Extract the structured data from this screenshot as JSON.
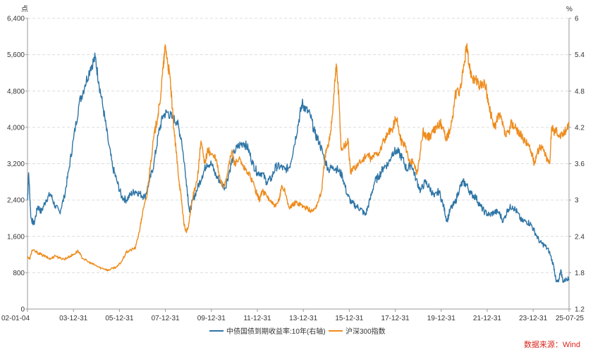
{
  "chart_data": {
    "type": "line",
    "title": "",
    "left_unit": "点",
    "right_unit": "%",
    "left_axis": {
      "min": 0,
      "max": 6400,
      "ticks": [
        "0",
        "800",
        "1,600",
        "2,400",
        "3,200",
        "4,000",
        "4,800",
        "5,600",
        "6,400"
      ]
    },
    "right_axis": {
      "min": 1.2,
      "max": 6.0,
      "ticks": [
        "1.2",
        "1.8",
        "2.4",
        "3",
        "3.6",
        "4.2",
        "4.8",
        "5.4",
        "6"
      ]
    },
    "x_range": [
      2002.0,
      2025.56
    ],
    "x_ticks": [
      {
        "label": "02-01-04",
        "t": 2002.0
      },
      {
        "label": "03-12-31",
        "t": 2004.0
      },
      {
        "label": "05-12-31",
        "t": 2006.0
      },
      {
        "label": "07-12-31",
        "t": 2008.0
      },
      {
        "label": "09-12-31",
        "t": 2010.0
      },
      {
        "label": "11-12-31",
        "t": 2012.0
      },
      {
        "label": "13-12-31",
        "t": 2014.0
      },
      {
        "label": "15-12-31",
        "t": 2016.0
      },
      {
        "label": "17-12-31",
        "t": 2018.0
      },
      {
        "label": "19-12-31",
        "t": 2020.0
      },
      {
        "label": "21-12-31",
        "t": 2022.0
      },
      {
        "label": "23-12-31",
        "t": 2024.0
      },
      {
        "label": "25-07-25",
        "t": 2025.56
      }
    ],
    "grid": true,
    "legend_position": "bottom",
    "series": [
      {
        "name": "中债国债到期收益率:10年(右轴)",
        "axis": "right",
        "color": "#2e75a6",
        "points": [
          [
            2002.0,
            3.0
          ],
          [
            2002.05,
            3.45
          ],
          [
            2002.15,
            2.7
          ],
          [
            2002.28,
            2.6
          ],
          [
            2002.45,
            2.9
          ],
          [
            2002.6,
            2.8
          ],
          [
            2002.8,
            3.0
          ],
          [
            2003.0,
            3.1
          ],
          [
            2003.2,
            2.9
          ],
          [
            2003.4,
            2.8
          ],
          [
            2003.6,
            3.05
          ],
          [
            2003.8,
            3.5
          ],
          [
            2004.0,
            4.0
          ],
          [
            2004.25,
            4.6
          ],
          [
            2004.5,
            4.9
          ],
          [
            2004.75,
            5.2
          ],
          [
            2004.95,
            5.35
          ],
          [
            2005.1,
            4.95
          ],
          [
            2005.3,
            4.5
          ],
          [
            2005.5,
            4.0
          ],
          [
            2005.7,
            3.55
          ],
          [
            2005.9,
            3.3
          ],
          [
            2006.1,
            3.05
          ],
          [
            2006.3,
            3.0
          ],
          [
            2006.5,
            3.1
          ],
          [
            2006.7,
            3.15
          ],
          [
            2006.9,
            3.1
          ],
          [
            2007.1,
            3.05
          ],
          [
            2007.3,
            3.3
          ],
          [
            2007.5,
            3.6
          ],
          [
            2007.7,
            4.1
          ],
          [
            2007.9,
            4.4
          ],
          [
            2008.1,
            4.45
          ],
          [
            2008.3,
            4.35
          ],
          [
            2008.5,
            4.3
          ],
          [
            2008.7,
            4.0
          ],
          [
            2008.9,
            3.35
          ],
          [
            2009.05,
            2.8
          ],
          [
            2009.2,
            3.0
          ],
          [
            2009.4,
            3.2
          ],
          [
            2009.6,
            3.4
          ],
          [
            2009.8,
            3.6
          ],
          [
            2010.0,
            3.6
          ],
          [
            2010.2,
            3.4
          ],
          [
            2010.4,
            3.3
          ],
          [
            2010.6,
            3.2
          ],
          [
            2010.8,
            3.5
          ],
          [
            2011.0,
            3.8
          ],
          [
            2011.2,
            3.9
          ],
          [
            2011.4,
            3.95
          ],
          [
            2011.6,
            3.85
          ],
          [
            2011.8,
            3.6
          ],
          [
            2012.0,
            3.45
          ],
          [
            2012.2,
            3.45
          ],
          [
            2012.4,
            3.3
          ],
          [
            2012.6,
            3.35
          ],
          [
            2012.8,
            3.55
          ],
          [
            2013.0,
            3.55
          ],
          [
            2013.2,
            3.5
          ],
          [
            2013.4,
            3.55
          ],
          [
            2013.6,
            3.9
          ],
          [
            2013.8,
            4.3
          ],
          [
            2013.95,
            4.6
          ],
          [
            2014.1,
            4.5
          ],
          [
            2014.3,
            4.4
          ],
          [
            2014.5,
            4.1
          ],
          [
            2014.7,
            3.95
          ],
          [
            2014.9,
            3.7
          ],
          [
            2015.1,
            3.5
          ],
          [
            2015.3,
            3.55
          ],
          [
            2015.5,
            3.5
          ],
          [
            2015.7,
            3.4
          ],
          [
            2015.9,
            3.1
          ],
          [
            2016.1,
            2.95
          ],
          [
            2016.3,
            2.9
          ],
          [
            2016.5,
            2.85
          ],
          [
            2016.7,
            2.75
          ],
          [
            2016.9,
            3.0
          ],
          [
            2017.1,
            3.3
          ],
          [
            2017.3,
            3.4
          ],
          [
            2017.5,
            3.55
          ],
          [
            2017.7,
            3.6
          ],
          [
            2017.9,
            3.8
          ],
          [
            2018.1,
            3.8
          ],
          [
            2018.3,
            3.7
          ],
          [
            2018.5,
            3.5
          ],
          [
            2018.7,
            3.6
          ],
          [
            2018.9,
            3.35
          ],
          [
            2019.1,
            3.15
          ],
          [
            2019.3,
            3.3
          ],
          [
            2019.5,
            3.2
          ],
          [
            2019.7,
            3.05
          ],
          [
            2019.9,
            3.15
          ],
          [
            2020.1,
            2.9
          ],
          [
            2020.25,
            2.65
          ],
          [
            2020.4,
            2.85
          ],
          [
            2020.6,
            2.95
          ],
          [
            2020.8,
            3.2
          ],
          [
            2020.95,
            3.3
          ],
          [
            2021.1,
            3.25
          ],
          [
            2021.3,
            3.1
          ],
          [
            2021.5,
            3.05
          ],
          [
            2021.7,
            2.9
          ],
          [
            2021.9,
            2.8
          ],
          [
            2022.1,
            2.75
          ],
          [
            2022.3,
            2.8
          ],
          [
            2022.5,
            2.8
          ],
          [
            2022.7,
            2.65
          ],
          [
            2022.9,
            2.85
          ],
          [
            2023.1,
            2.9
          ],
          [
            2023.3,
            2.8
          ],
          [
            2023.5,
            2.65
          ],
          [
            2023.7,
            2.65
          ],
          [
            2023.9,
            2.6
          ],
          [
            2024.1,
            2.45
          ],
          [
            2024.3,
            2.3
          ],
          [
            2024.5,
            2.25
          ],
          [
            2024.7,
            2.15
          ],
          [
            2024.9,
            1.9
          ],
          [
            2025.0,
            1.65
          ],
          [
            2025.1,
            1.65
          ],
          [
            2025.2,
            1.85
          ],
          [
            2025.3,
            1.65
          ],
          [
            2025.45,
            1.7
          ],
          [
            2025.56,
            1.7
          ]
        ]
      },
      {
        "name": "沪深300指数",
        "axis": "left",
        "color": "#ee8c1d",
        "points": [
          [
            2002.0,
            1150
          ],
          [
            2002.1,
            1100
          ],
          [
            2002.2,
            1300
          ],
          [
            2002.4,
            1250
          ],
          [
            2002.6,
            1200
          ],
          [
            2002.8,
            1150
          ],
          [
            2003.0,
            1100
          ],
          [
            2003.2,
            1180
          ],
          [
            2003.4,
            1120
          ],
          [
            2003.6,
            1100
          ],
          [
            2003.8,
            1150
          ],
          [
            2004.0,
            1200
          ],
          [
            2004.2,
            1280
          ],
          [
            2004.35,
            1150
          ],
          [
            2004.6,
            1050
          ],
          [
            2004.8,
            1000
          ],
          [
            2005.0,
            950
          ],
          [
            2005.2,
            900
          ],
          [
            2005.4,
            880
          ],
          [
            2005.5,
            850
          ],
          [
            2005.7,
            900
          ],
          [
            2005.9,
            930
          ],
          [
            2006.1,
            1050
          ],
          [
            2006.3,
            1250
          ],
          [
            2006.5,
            1300
          ],
          [
            2006.7,
            1350
          ],
          [
            2006.9,
            1800
          ],
          [
            2007.0,
            2100
          ],
          [
            2007.2,
            2500
          ],
          [
            2007.35,
            3200
          ],
          [
            2007.5,
            3800
          ],
          [
            2007.65,
            4200
          ],
          [
            2007.75,
            4500
          ],
          [
            2007.9,
            5300
          ],
          [
            2008.0,
            5800
          ],
          [
            2008.1,
            5400
          ],
          [
            2008.2,
            5100
          ],
          [
            2008.3,
            4400
          ],
          [
            2008.4,
            3800
          ],
          [
            2008.5,
            3300
          ],
          [
            2008.6,
            2800
          ],
          [
            2008.7,
            2400
          ],
          [
            2008.8,
            1900
          ],
          [
            2008.9,
            1700
          ],
          [
            2009.0,
            1800
          ],
          [
            2009.1,
            2200
          ],
          [
            2009.25,
            2600
          ],
          [
            2009.4,
            2900
          ],
          [
            2009.55,
            3700
          ],
          [
            2009.7,
            3200
          ],
          [
            2009.85,
            3500
          ],
          [
            2010.0,
            3400
          ],
          [
            2010.2,
            3300
          ],
          [
            2010.4,
            2800
          ],
          [
            2010.55,
            2700
          ],
          [
            2010.7,
            3000
          ],
          [
            2010.9,
            3500
          ],
          [
            2011.0,
            3200
          ],
          [
            2011.2,
            3300
          ],
          [
            2011.4,
            3100
          ],
          [
            2011.6,
            3000
          ],
          [
            2011.8,
            2800
          ],
          [
            2012.0,
            2500
          ],
          [
            2012.1,
            2400
          ],
          [
            2012.2,
            2600
          ],
          [
            2012.4,
            2500
          ],
          [
            2012.6,
            2350
          ],
          [
            2012.8,
            2250
          ],
          [
            2012.95,
            2400
          ],
          [
            2013.05,
            2700
          ],
          [
            2013.2,
            2600
          ],
          [
            2013.4,
            2200
          ],
          [
            2013.55,
            2300
          ],
          [
            2013.7,
            2350
          ],
          [
            2013.9,
            2300
          ],
          [
            2014.0,
            2250
          ],
          [
            2014.2,
            2200
          ],
          [
            2014.4,
            2150
          ],
          [
            2014.6,
            2300
          ],
          [
            2014.8,
            2600
          ],
          [
            2014.95,
            3400
          ],
          [
            2015.1,
            3600
          ],
          [
            2015.25,
            4200
          ],
          [
            2015.4,
            5200
          ],
          [
            2015.45,
            5350
          ],
          [
            2015.55,
            4600
          ],
          [
            2015.65,
            3500
          ],
          [
            2015.8,
            3600
          ],
          [
            2015.95,
            3700
          ],
          [
            2016.05,
            3000
          ],
          [
            2016.2,
            3100
          ],
          [
            2016.4,
            3200
          ],
          [
            2016.6,
            3300
          ],
          [
            2016.8,
            3400
          ],
          [
            2016.95,
            3300
          ],
          [
            2017.1,
            3400
          ],
          [
            2017.3,
            3450
          ],
          [
            2017.5,
            3700
          ],
          [
            2017.7,
            3850
          ],
          [
            2017.9,
            4000
          ],
          [
            2018.0,
            4200
          ],
          [
            2018.1,
            4100
          ],
          [
            2018.25,
            3700
          ],
          [
            2018.4,
            3600
          ],
          [
            2018.6,
            3300
          ],
          [
            2018.8,
            3200
          ],
          [
            2018.95,
            3000
          ],
          [
            2019.05,
            3300
          ],
          [
            2019.2,
            3900
          ],
          [
            2019.35,
            3800
          ],
          [
            2019.5,
            3800
          ],
          [
            2019.65,
            3900
          ],
          [
            2019.8,
            4000
          ],
          [
            2019.95,
            4100
          ],
          [
            2020.1,
            4000
          ],
          [
            2020.2,
            3700
          ],
          [
            2020.35,
            3900
          ],
          [
            2020.5,
            4200
          ],
          [
            2020.6,
            4700
          ],
          [
            2020.8,
            4800
          ],
          [
            2020.95,
            5200
          ],
          [
            2021.1,
            5800
          ],
          [
            2021.2,
            5400
          ],
          [
            2021.35,
            5100
          ],
          [
            2021.5,
            5050
          ],
          [
            2021.65,
            4900
          ],
          [
            2021.8,
            4950
          ],
          [
            2021.95,
            4900
          ],
          [
            2022.05,
            4500
          ],
          [
            2022.2,
            4200
          ],
          [
            2022.35,
            4000
          ],
          [
            2022.5,
            4300
          ],
          [
            2022.65,
            4100
          ],
          [
            2022.8,
            3800
          ],
          [
            2022.95,
            3900
          ],
          [
            2023.05,
            4100
          ],
          [
            2023.2,
            4000
          ],
          [
            2023.35,
            3900
          ],
          [
            2023.5,
            3800
          ],
          [
            2023.65,
            3700
          ],
          [
            2023.8,
            3600
          ],
          [
            2023.95,
            3400
          ],
          [
            2024.05,
            3200
          ],
          [
            2024.15,
            3400
          ],
          [
            2024.3,
            3600
          ],
          [
            2024.45,
            3500
          ],
          [
            2024.6,
            3300
          ],
          [
            2024.72,
            3200
          ],
          [
            2024.8,
            4000
          ],
          [
            2024.9,
            3900
          ],
          [
            2025.0,
            3950
          ],
          [
            2025.15,
            3800
          ],
          [
            2025.3,
            3850
          ],
          [
            2025.45,
            3950
          ],
          [
            2025.56,
            4100
          ]
        ]
      }
    ]
  },
  "legend": {
    "items": [
      "中债国债到期收益率:10年(右轴)",
      "沪深300指数"
    ]
  },
  "source_note": "数据来源：Wind"
}
